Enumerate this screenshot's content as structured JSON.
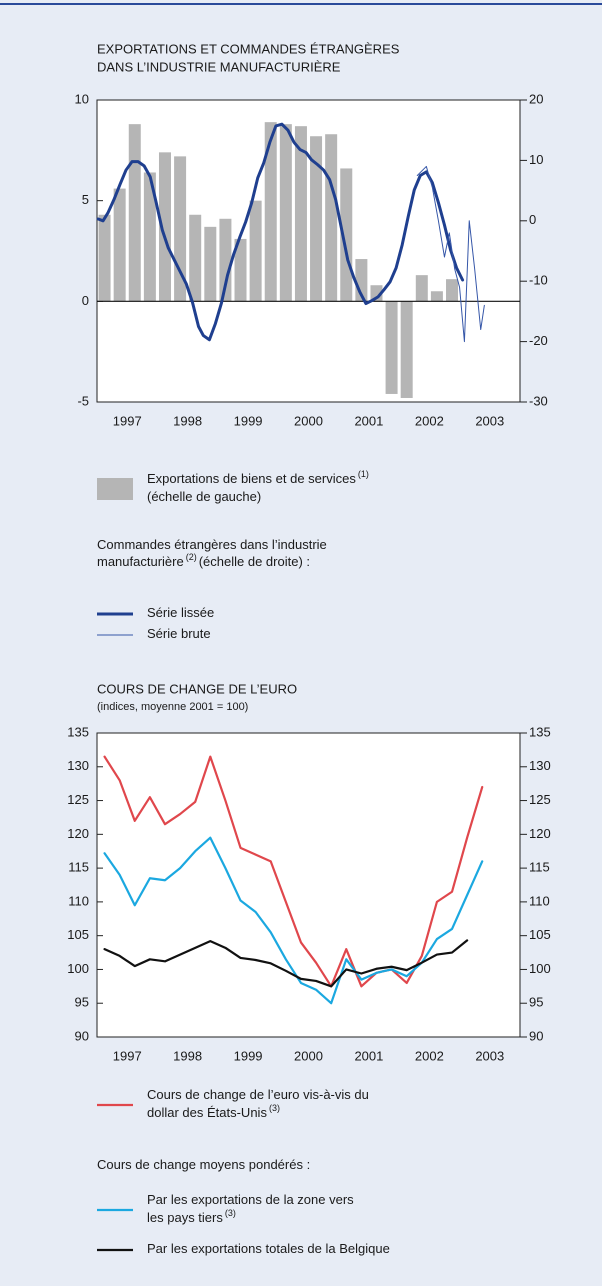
{
  "chart_data": [
    {
      "type": "bar_line",
      "title": [
        "EXPORTATIONS ET COMMANDES ÉTRANGÈRES",
        "DANS L’INDUSTRIE MANUFACTURIÈRE"
      ],
      "xlim": [
        1997,
        2004
      ],
      "xticks": [
        {
          "value": 1997.5,
          "label": "1997"
        },
        {
          "value": 1998.5,
          "label": "1998"
        },
        {
          "value": 1999.5,
          "label": "1999"
        },
        {
          "value": 2000.5,
          "label": "2000"
        },
        {
          "value": 2001.5,
          "label": "2001"
        },
        {
          "value": 2002.5,
          "label": "2002"
        },
        {
          "value": 2003.5,
          "label": "2003"
        }
      ],
      "ylim": [
        -5,
        10
      ],
      "yticks": [
        -5,
        0,
        5,
        10
      ],
      "y2lim": [
        -30,
        20
      ],
      "y2ticks": [
        -30,
        -20,
        -10,
        0,
        10,
        20
      ],
      "legend_heading": [
        [
          "Commandes étrangères dans l’industrie"
        ],
        [
          "manufacturière",
          "(2)",
          "(échelle de droite) :"
        ]
      ],
      "series": [
        {
          "type": "bar",
          "name": [
            [
              "Exportations de biens et de services",
              "(1)"
            ],
            [
              "(échelle de gauche)"
            ]
          ],
          "color": "#b5b5b5",
          "x": [
            1997.125,
            1997.375,
            1997.625,
            1997.875,
            1998.125,
            1998.375,
            1998.625,
            1998.875,
            1999.125,
            1999.375,
            1999.625,
            1999.875,
            2000.125,
            2000.375,
            2000.625,
            2000.875,
            2001.125,
            2001.375,
            2001.625,
            2001.875,
            2002.125,
            2002.375,
            2002.625,
            2002.875
          ],
          "values": [
            4.3,
            5.6,
            8.8,
            6.4,
            7.4,
            7.2,
            4.3,
            3.7,
            4.1,
            3.1,
            5.0,
            8.9,
            8.8,
            8.7,
            8.2,
            8.3,
            6.6,
            2.1,
            0.8,
            -4.6,
            -4.8,
            1.3,
            0.5,
            1.1
          ]
        },
        {
          "type": "line",
          "axis": "y2",
          "name": [
            [
              "Série lissée"
            ]
          ],
          "color": "#1f3f8f",
          "width": 3,
          "x": [
            1997.02,
            1997.1,
            1997.18,
            1997.28,
            1997.38,
            1997.48,
            1997.58,
            1997.68,
            1997.78,
            1997.88,
            1997.98,
            1998.08,
            1998.18,
            1998.28,
            1998.38,
            1998.48,
            1998.58,
            1998.68,
            1998.76,
            1998.86,
            1998.96,
            1999.06,
            1999.16,
            1999.26,
            1999.36,
            1999.46,
            1999.56,
            1999.66,
            1999.76,
            1999.86,
            1999.96,
            2000.06,
            2000.16,
            2000.26,
            2000.36,
            2000.46,
            2000.55,
            2000.65,
            2000.75,
            2000.85,
            2000.95,
            2001.05,
            2001.15,
            2001.25,
            2001.35,
            2001.45,
            2001.55,
            2001.65,
            2001.75,
            2001.85,
            2001.95,
            2002.05,
            2002.15,
            2002.25,
            2002.35,
            2002.45,
            2002.55,
            2002.65,
            2002.75,
            2002.85,
            2002.95,
            2003.05
          ],
          "values": [
            0.3,
            0,
            1.3,
            3.5,
            6,
            8.4,
            9.8,
            9.8,
            9.1,
            7.3,
            3.0,
            -1.5,
            -4.5,
            -6.5,
            -8.5,
            -10.5,
            -13.5,
            -17.5,
            -19,
            -19.7,
            -17,
            -13.6,
            -9,
            -5.6,
            -2.8,
            -0.2,
            3,
            7.1,
            9.6,
            13,
            15.7,
            16,
            15,
            13,
            11.8,
            11.3,
            10.1,
            9.3,
            8.4,
            6.8,
            3.5,
            -1.5,
            -6.5,
            -9.4,
            -11.8,
            -13.7,
            -13.2,
            -12.6,
            -11.4,
            -10.1,
            -7.8,
            -4,
            0.7,
            5.1,
            7.5,
            8.1,
            6.3,
            3,
            -0.7,
            -4.8,
            -7.8,
            -9.8
          ]
        },
        {
          "type": "line",
          "axis": "y2",
          "name": [
            [
              "Série brute"
            ]
          ],
          "color": "#3556a8",
          "width": 1,
          "x": [
            2002.3,
            2002.45,
            2002.55,
            2002.65,
            2002.75,
            2002.83,
            2002.92,
            2003.0,
            2003.08,
            2003.16,
            2003.25,
            2003.35,
            2003.41
          ],
          "values": [
            7.5,
            9.0,
            5.5,
            0,
            -6,
            -2,
            -8,
            -11,
            -20,
            0,
            -8,
            -18,
            -14
          ]
        }
      ]
    },
    {
      "type": "line",
      "title": [
        "COURS DE CHANGE DE L’EURO"
      ],
      "subtitle": "(indices, moyenne 2001 = 100)",
      "xlim": [
        1997,
        2004
      ],
      "xticks": [
        {
          "value": 1997.5,
          "label": "1997"
        },
        {
          "value": 1998.5,
          "label": "1998"
        },
        {
          "value": 1999.5,
          "label": "1999"
        },
        {
          "value": 2000.5,
          "label": "2000"
        },
        {
          "value": 2001.5,
          "label": "2001"
        },
        {
          "value": 2002.5,
          "label": "2002"
        },
        {
          "value": 2003.5,
          "label": "2003"
        }
      ],
      "ylim": [
        90,
        135
      ],
      "yticks": [
        90,
        95,
        100,
        105,
        110,
        115,
        120,
        125,
        130,
        135
      ],
      "mirror_y_axis": true,
      "legend_heading": [
        [
          "Cours de change moyens pondérés :"
        ]
      ],
      "series": [
        {
          "type": "line",
          "name": [
            [
              "Cours de change de l’euro vis-à-vis du"
            ],
            [
              "dollar des États-Unis",
              "(3)"
            ]
          ],
          "color": "#e0474c",
          "width": 2.2,
          "x": [
            1997.125,
            1997.375,
            1997.625,
            1997.875,
            1998.125,
            1998.375,
            1998.625,
            1998.875,
            1999.125,
            1999.375,
            1999.625,
            1999.875,
            2000.125,
            2000.375,
            2000.625,
            2000.875,
            2001.125,
            2001.375,
            2001.625,
            2001.875,
            2002.125,
            2002.375,
            2002.625,
            2002.875,
            2003.125,
            2003.375
          ],
          "values": [
            131.5,
            128,
            122,
            125.5,
            121.5,
            123,
            124.8,
            131.5,
            125,
            118,
            117,
            116,
            110,
            104,
            101,
            97.5,
            103,
            97.5,
            99.5,
            100,
            98,
            102,
            110,
            111.5,
            119.5,
            127
          ]
        },
        {
          "type": "line",
          "name": [
            [
              "Par les exportations de la zone vers"
            ],
            [
              "les pays tiers",
              "(3)"
            ]
          ],
          "color": "#1ba8e0",
          "width": 2.2,
          "x": [
            1997.125,
            1997.375,
            1997.625,
            1997.875,
            1998.125,
            1998.375,
            1998.625,
            1998.875,
            1999.125,
            1999.375,
            1999.625,
            1999.875,
            2000.125,
            2000.375,
            2000.625,
            2000.875,
            2001.125,
            2001.375,
            2001.625,
            2001.875,
            2002.125,
            2002.375,
            2002.625,
            2002.875,
            2003.125,
            2003.375
          ],
          "values": [
            117.2,
            114,
            109.5,
            113.5,
            113.2,
            115,
            117.5,
            119.5,
            115,
            110.2,
            108.5,
            105.5,
            101.5,
            98,
            97,
            95,
            101.5,
            98.5,
            99.5,
            100,
            99,
            101,
            104.5,
            106,
            111,
            116
          ]
        },
        {
          "type": "line",
          "name": [
            [
              "Par les exportations totales de la Belgique"
            ]
          ],
          "color": "#111111",
          "width": 2.2,
          "x": [
            1997.125,
            1997.375,
            1997.625,
            1997.875,
            1998.125,
            1998.375,
            1998.625,
            1998.875,
            1999.125,
            1999.375,
            1999.625,
            1999.875,
            2000.125,
            2000.375,
            2000.625,
            2000.875,
            2001.125,
            2001.375,
            2001.625,
            2001.875,
            2002.125,
            2002.375,
            2002.625,
            2002.875,
            2003.125,
            2003.375
          ],
          "values": [
            103,
            102,
            100.5,
            101.5,
            101.2,
            102.2,
            103.2,
            104.2,
            103.2,
            101.7,
            101.4,
            100.9,
            99.8,
            98.6,
            98.3,
            97.5,
            100,
            99.4,
            100.1,
            100.4,
            99.9,
            101,
            102.2,
            102.5,
            104.3,
            null
          ]
        }
      ]
    }
  ]
}
